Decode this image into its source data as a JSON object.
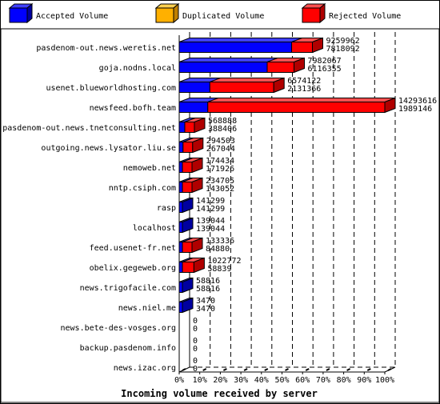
{
  "colors": {
    "accepted": "#0000ff",
    "accepted_top": "#4040ff",
    "accepted_side": "#0000a0",
    "duplicated": "#ffb000",
    "duplicated_top": "#ffd050",
    "duplicated_side": "#c08000",
    "rejected": "#ff0000",
    "rejected_top": "#ff5050",
    "rejected_side": "#b00000",
    "frame": "#000000",
    "background": "#ffffff"
  },
  "chart_data": {
    "type": "bar",
    "orientation": "horizontal",
    "stacked": true,
    "xlabel": "Incoming volume received by server",
    "xlim": [
      0,
      100
    ],
    "x_ticks": [
      "0%",
      "10%",
      "20%",
      "30%",
      "40%",
      "50%",
      "60%",
      "70%",
      "80%",
      "90%",
      "100%"
    ],
    "grid": true,
    "legend_position": "top",
    "legend": [
      {
        "key": "accepted",
        "label": "Accepted Volume"
      },
      {
        "key": "duplicated",
        "label": "Duplicated Volume"
      },
      {
        "key": "rejected",
        "label": "Rejected Volume"
      }
    ],
    "max_total": 14293616,
    "categories": [
      {
        "name": "pasdenom-out.news.weretis.net",
        "total": 9259962,
        "accepted": 7818092
      },
      {
        "name": "goja.nodns.local",
        "total": 7982067,
        "accepted": 6116355
      },
      {
        "name": "usenet.blueworldhosting.com",
        "total": 6574122,
        "accepted": 2131366
      },
      {
        "name": "newsfeed.bofh.team",
        "total": 14293616,
        "accepted": 1989146
      },
      {
        "name": "pasdenom-out.news.tnetconsulting.net",
        "total": 568888,
        "accepted": 388406
      },
      {
        "name": "outgoing.news.lysator.liu.se",
        "total": 294503,
        "accepted": 267044
      },
      {
        "name": "nemoweb.net",
        "total": 174434,
        "accepted": 171926
      },
      {
        "name": "nntp.csiph.com",
        "total": 234705,
        "accepted": 143052
      },
      {
        "name": "rasp",
        "total": 141299,
        "accepted": 141299
      },
      {
        "name": "localhost",
        "total": 139044,
        "accepted": 139044
      },
      {
        "name": "feed.usenet-fr.net",
        "total": 133336,
        "accepted": 84880
      },
      {
        "name": "obelix.gegeweb.org",
        "total": 1022772,
        "accepted": 58839
      },
      {
        "name": "news.trigofacile.com",
        "total": 58816,
        "accepted": 58816
      },
      {
        "name": "news.niel.me",
        "total": 3470,
        "accepted": 3470
      },
      {
        "name": "news.bete-des-vosges.org",
        "total": 0,
        "accepted": 0
      },
      {
        "name": "backup.pasdenom.info",
        "total": 0,
        "accepted": 0
      },
      {
        "name": "news.izac.org",
        "total": 0,
        "accepted": 0
      }
    ]
  }
}
